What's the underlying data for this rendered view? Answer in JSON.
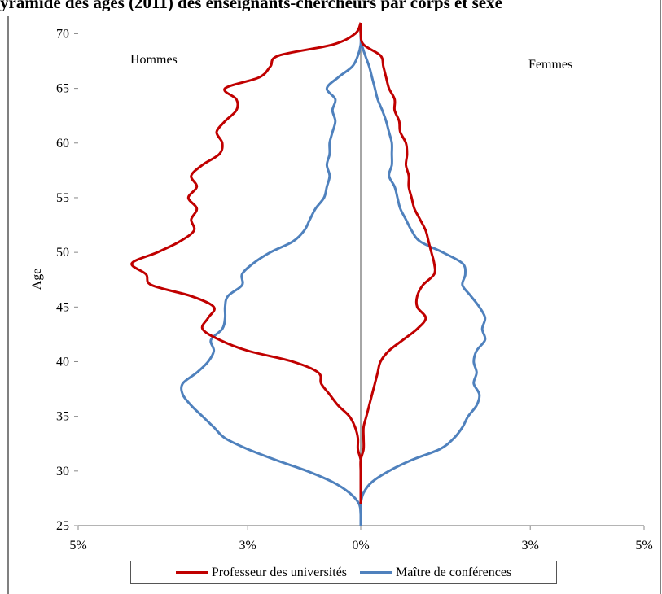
{
  "chart_data": {
    "type": "line",
    "title": "yramide des âges (2011) des enseignants-chercheurs par corps et sexe",
    "ylabel": "Age",
    "xlabel": "",
    "ylim": [
      25,
      71
    ],
    "xlim": [
      -5,
      5
    ],
    "y_ticks": [
      "25",
      "30",
      "35",
      "40",
      "45",
      "50",
      "55",
      "60",
      "65",
      "70"
    ],
    "x_ticks": [
      "5%",
      "3%",
      "0%",
      "3%",
      "5%"
    ],
    "annotations": {
      "left": "Hommes",
      "right": "Femmes"
    },
    "grid": false,
    "legend_position": "bottom",
    "series": [
      {
        "name": "Professeur des universités",
        "color": "#C00000",
        "side": "hommes",
        "points": [
          [
            27,
            0
          ],
          [
            28,
            0
          ],
          [
            29,
            0
          ],
          [
            30,
            0
          ],
          [
            31,
            0
          ],
          [
            32,
            0.05
          ],
          [
            33,
            0.05
          ],
          [
            34,
            0.1
          ],
          [
            35,
            0.2
          ],
          [
            36,
            0.4
          ],
          [
            37,
            0.55
          ],
          [
            38,
            0.7
          ],
          [
            39,
            0.75
          ],
          [
            40,
            1.2
          ],
          [
            41,
            2.0
          ],
          [
            42,
            2.5
          ],
          [
            43,
            2.8
          ],
          [
            44,
            2.7
          ],
          [
            45,
            2.6
          ],
          [
            46,
            3.0
          ],
          [
            47,
            3.7
          ],
          [
            48,
            3.8
          ],
          [
            49,
            4.05
          ],
          [
            50,
            3.6
          ],
          [
            51,
            3.2
          ],
          [
            52,
            2.95
          ],
          [
            53,
            3.0
          ],
          [
            54,
            2.9
          ],
          [
            55,
            3.05
          ],
          [
            56,
            2.9
          ],
          [
            57,
            3.0
          ],
          [
            58,
            2.8
          ],
          [
            59,
            2.5
          ],
          [
            60,
            2.45
          ],
          [
            61,
            2.55
          ],
          [
            62,
            2.4
          ],
          [
            63,
            2.2
          ],
          [
            64,
            2.2
          ],
          [
            65,
            2.4
          ],
          [
            66,
            1.8
          ],
          [
            67,
            1.6
          ],
          [
            68,
            1.45
          ],
          [
            69,
            0.5
          ],
          [
            70,
            0.1
          ],
          [
            71,
            0
          ]
        ]
      },
      {
        "name": "Professeur des universités",
        "color": "#C00000",
        "side": "femmes",
        "points": [
          [
            27,
            0
          ],
          [
            28,
            0
          ],
          [
            29,
            0
          ],
          [
            30,
            0
          ],
          [
            31,
            0
          ],
          [
            32,
            0.05
          ],
          [
            33,
            0.05
          ],
          [
            34,
            0.05
          ],
          [
            35,
            0.1
          ],
          [
            36,
            0.15
          ],
          [
            37,
            0.2
          ],
          [
            38,
            0.25
          ],
          [
            39,
            0.3
          ],
          [
            40,
            0.35
          ],
          [
            41,
            0.5
          ],
          [
            42,
            0.75
          ],
          [
            43,
            1.0
          ],
          [
            44,
            1.15
          ],
          [
            45,
            1.0
          ],
          [
            46,
            1.0
          ],
          [
            47,
            1.1
          ],
          [
            48,
            1.3
          ],
          [
            49,
            1.3
          ],
          [
            50,
            1.25
          ],
          [
            51,
            1.2
          ],
          [
            52,
            1.15
          ],
          [
            53,
            1.05
          ],
          [
            54,
            0.95
          ],
          [
            55,
            0.9
          ],
          [
            56,
            0.85
          ],
          [
            57,
            0.85
          ],
          [
            58,
            0.8
          ],
          [
            59,
            0.82
          ],
          [
            60,
            0.8
          ],
          [
            61,
            0.7
          ],
          [
            62,
            0.68
          ],
          [
            63,
            0.6
          ],
          [
            64,
            0.6
          ],
          [
            65,
            0.5
          ],
          [
            66,
            0.45
          ],
          [
            67,
            0.4
          ],
          [
            68,
            0.35
          ],
          [
            69,
            0.05
          ],
          [
            70,
            0
          ],
          [
            71,
            0
          ]
        ]
      },
      {
        "name": "Maître de conférences",
        "color": "#4F81BD",
        "side": "hommes",
        "points": [
          [
            25,
            0
          ],
          [
            26,
            0
          ],
          [
            27,
            0.03
          ],
          [
            28,
            0.2
          ],
          [
            29,
            0.5
          ],
          [
            30,
            0.95
          ],
          [
            31,
            1.5
          ],
          [
            32,
            2.0
          ],
          [
            33,
            2.4
          ],
          [
            34,
            2.6
          ],
          [
            35,
            2.8
          ],
          [
            36,
            3.0
          ],
          [
            37,
            3.15
          ],
          [
            38,
            3.15
          ],
          [
            39,
            2.9
          ],
          [
            40,
            2.7
          ],
          [
            41,
            2.6
          ],
          [
            42,
            2.65
          ],
          [
            43,
            2.45
          ],
          [
            44,
            2.4
          ],
          [
            45,
            2.4
          ],
          [
            46,
            2.35
          ],
          [
            47,
            2.1
          ],
          [
            48,
            2.1
          ],
          [
            49,
            1.9
          ],
          [
            50,
            1.6
          ],
          [
            51,
            1.2
          ],
          [
            52,
            1.0
          ],
          [
            53,
            0.9
          ],
          [
            54,
            0.8
          ],
          [
            55,
            0.65
          ],
          [
            56,
            0.6
          ],
          [
            57,
            0.55
          ],
          [
            58,
            0.6
          ],
          [
            59,
            0.55
          ],
          [
            60,
            0.55
          ],
          [
            61,
            0.5
          ],
          [
            62,
            0.45
          ],
          [
            63,
            0.5
          ],
          [
            64,
            0.45
          ],
          [
            65,
            0.6
          ],
          [
            66,
            0.4
          ],
          [
            67,
            0.15
          ],
          [
            68,
            0.05
          ],
          [
            69,
            0
          ],
          [
            70,
            0
          ],
          [
            71,
            0
          ]
        ]
      },
      {
        "name": "Maître de conférences",
        "color": "#4F81BD",
        "side": "femmes",
        "points": [
          [
            25,
            0
          ],
          [
            26,
            0
          ],
          [
            27,
            0
          ],
          [
            28,
            0.05
          ],
          [
            29,
            0.2
          ],
          [
            30,
            0.5
          ],
          [
            31,
            0.9
          ],
          [
            32,
            1.4
          ],
          [
            33,
            1.65
          ],
          [
            34,
            1.8
          ],
          [
            35,
            1.9
          ],
          [
            36,
            2.05
          ],
          [
            37,
            2.1
          ],
          [
            38,
            2.0
          ],
          [
            39,
            2.05
          ],
          [
            40,
            2.0
          ],
          [
            41,
            2.05
          ],
          [
            42,
            2.2
          ],
          [
            43,
            2.15
          ],
          [
            44,
            2.2
          ],
          [
            45,
            2.1
          ],
          [
            46,
            1.95
          ],
          [
            47,
            1.8
          ],
          [
            48,
            1.85
          ],
          [
            49,
            1.8
          ],
          [
            50,
            1.45
          ],
          [
            51,
            1.05
          ],
          [
            52,
            0.9
          ],
          [
            53,
            0.8
          ],
          [
            54,
            0.7
          ],
          [
            55,
            0.65
          ],
          [
            56,
            0.6
          ],
          [
            57,
            0.5
          ],
          [
            58,
            0.55
          ],
          [
            59,
            0.55
          ],
          [
            60,
            0.55
          ],
          [
            61,
            0.5
          ],
          [
            62,
            0.45
          ],
          [
            63,
            0.38
          ],
          [
            64,
            0.3
          ],
          [
            65,
            0.25
          ],
          [
            66,
            0.2
          ],
          [
            67,
            0.15
          ],
          [
            68,
            0.08
          ],
          [
            69,
            0.02
          ],
          [
            70,
            0
          ],
          [
            71,
            0
          ]
        ]
      }
    ],
    "legend": [
      {
        "name": "Professeur des universités",
        "color": "#C00000"
      },
      {
        "name": "Maître de conférences",
        "color": "#4F81BD"
      }
    ]
  }
}
